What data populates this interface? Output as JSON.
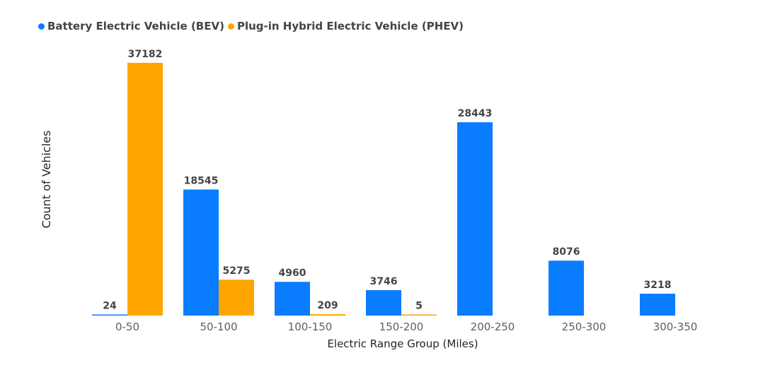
{
  "chart_data": {
    "type": "bar",
    "title": "",
    "xlabel": "Electric Range Group (Miles)",
    "ylabel": "Count of Vehicles",
    "categories": [
      "0-50",
      "50-100",
      "100-150",
      "150-200",
      "200-250",
      "250-300",
      "300-350"
    ],
    "series": [
      {
        "name": "Battery Electric Vehicle (BEV)",
        "color": "#0a7cff",
        "values": [
          24,
          18545,
          4960,
          3746,
          28443,
          8076,
          3218
        ]
      },
      {
        "name": "Plug-in Hybrid Electric Vehicle (PHEV)",
        "color": "#ffa500",
        "values": [
          37182,
          5275,
          209,
          5,
          null,
          null,
          null
        ]
      }
    ],
    "ylim": [
      0,
      37182
    ],
    "grid": false,
    "legend": "top-left"
  }
}
